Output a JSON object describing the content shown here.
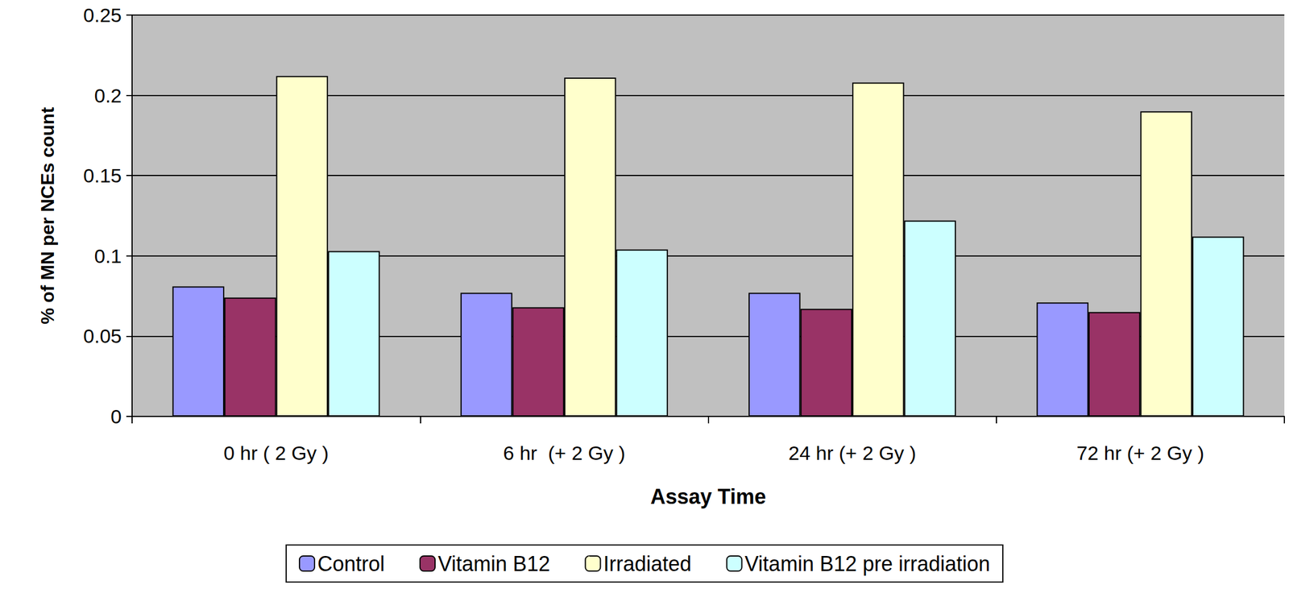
{
  "chart_data": {
    "type": "bar",
    "x_label": "Assay Time",
    "y_label": "% of MN per NCEs count",
    "categories": [
      "0 hr ( 2 Gy )",
      "6 hr  (+ 2 Gy )",
      "24 hr (+ 2 Gy )",
      "72 hr (+ 2 Gy )"
    ],
    "series": [
      {
        "name": "Control",
        "color": "#9999ff",
        "values": [
          0.081,
          0.077,
          0.077,
          0.071
        ]
      },
      {
        "name": "Vitamin B12",
        "color": "#993366",
        "values": [
          0.074,
          0.068,
          0.067,
          0.065
        ]
      },
      {
        "name": "Irradiated",
        "color": "#ffffcc",
        "values": [
          0.212,
          0.211,
          0.208,
          0.19
        ]
      },
      {
        "name": "Vitamin B12 pre irradiation",
        "color": "#ccffff",
        "values": [
          0.103,
          0.104,
          0.122,
          0.112
        ]
      }
    ],
    "ylim": [
      0,
      0.25
    ],
    "yticks": [
      0,
      0.05,
      0.1,
      0.15,
      0.2,
      0.25
    ],
    "grid": true,
    "legend": "bottom"
  }
}
